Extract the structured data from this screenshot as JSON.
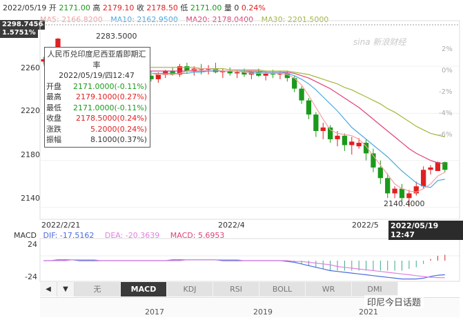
{
  "header": {
    "date": "2022/05/19",
    "open_label": "开",
    "open_value": "2171.00",
    "high_label": "高",
    "high_value": "2179.10",
    "close_label": "收",
    "close_value": "2178.50",
    "low_label": "低",
    "low_value": "2171.00",
    "vol_label": "量",
    "vol_value": "0",
    "change_pct": "0.24%"
  },
  "ma_legend": [
    {
      "label": "MA5: 2166.8200",
      "color": "#f5a0a0"
    },
    {
      "label": "MA10: 2162.9500",
      "color": "#4aa8e0"
    },
    {
      "label": "MA20: 2178.0400",
      "color": "#e0407a"
    },
    {
      "label": "MA30: 2201.5000",
      "color": "#a0b83a"
    }
  ],
  "top_price_label": "2298.7456",
  "top_pct_label": "1.5751%",
  "y_ticks": [
    "2260",
    "2220",
    "2180",
    "2140"
  ],
  "pct_ticks": [
    "2%",
    "0%",
    "-2%",
    "-4%",
    "-6%"
  ],
  "x_ticks": [
    "2022/2/21",
    "2022/4",
    "2022/5"
  ],
  "current_time": "2022/05/19 12:47",
  "high_annotation": "2283.5000",
  "low_annotation": "2140.4000",
  "watermark": "sina 新浪财经",
  "tooltip": {
    "title": "人民币兑印度尼西亚盾即期汇率",
    "datetime": "2022/05/19/四12:47",
    "rows": [
      {
        "k": "开盘",
        "v": "2171.0000(-0.11%)",
        "color": "#1a9a1a"
      },
      {
        "k": "最高",
        "v": "2179.1000(0.27%)",
        "color": "#e02020"
      },
      {
        "k": "最低",
        "v": "2171.0000(-0.11%)",
        "color": "#1a9a1a"
      },
      {
        "k": "收盘",
        "v": "2178.5000(0.24%)",
        "color": "#e02020"
      },
      {
        "k": "涨跌",
        "v": "5.2000(0.24%)",
        "color": "#e02020"
      },
      {
        "k": "振幅",
        "v": "8.1000(0.37%)",
        "color": "#333333"
      }
    ]
  },
  "macd_legend": {
    "name": "MACD",
    "dif": "DIF: -17.5162",
    "dea": "DEA: -20.3639",
    "macd": "MACD: 5.6953"
  },
  "macd_ticks": [
    "24",
    "-24"
  ],
  "nav_prev": "◀",
  "nav_next": "▼",
  "indicator_tabs": [
    "无",
    "MACD",
    "KDJ",
    "RSI",
    "BOLL",
    "WR",
    "DMI"
  ],
  "active_tab": "MACD",
  "nav_years": [
    "2017",
    "2019",
    "2021"
  ],
  "wechat_label": "印尼今日话题",
  "chart_data": {
    "type": "candlestick",
    "title": "人民币兑印度尼西亚盾即期汇率",
    "ylim": [
      2130,
      2298.7456
    ],
    "up_color": "#e02020",
    "down_color": "#1a9a1a",
    "candles": [
      [
        2264,
        2268,
        2262,
        2266
      ],
      [
        2266,
        2270,
        2263,
        2265
      ],
      [
        2265,
        2284,
        2264,
        2283.5
      ],
      [
        2268,
        2270,
        2255,
        2258
      ],
      [
        2258,
        2262,
        2252,
        2255
      ],
      [
        2255,
        2258,
        2250,
        2253
      ],
      [
        2253,
        2257,
        2249,
        2255
      ],
      [
        2255,
        2258,
        2248,
        2250
      ],
      [
        2250,
        2256,
        2247,
        2254
      ],
      [
        2254,
        2259,
        2250,
        2252
      ],
      [
        2252,
        2257,
        2248,
        2255
      ],
      [
        2255,
        2258,
        2251,
        2253
      ],
      [
        2253,
        2257,
        2249,
        2256
      ],
      [
        2256,
        2259,
        2252,
        2254
      ],
      [
        2254,
        2257,
        2249,
        2252
      ],
      [
        2252,
        2256,
        2247,
        2249
      ],
      [
        2249,
        2255,
        2246,
        2253
      ],
      [
        2253,
        2257,
        2250,
        2256
      ],
      [
        2256,
        2259,
        2252,
        2253
      ],
      [
        2253,
        2262,
        2251,
        2260
      ],
      [
        2260,
        2263,
        2254,
        2256
      ],
      [
        2256,
        2260,
        2252,
        2258
      ],
      [
        2258,
        2262,
        2253,
        2257
      ],
      [
        2257,
        2261,
        2253,
        2258
      ],
      [
        2258,
        2263,
        2254,
        2255
      ],
      [
        2255,
        2258,
        2250,
        2256
      ],
      [
        2256,
        2259,
        2252,
        2254
      ],
      [
        2254,
        2257,
        2250,
        2255
      ],
      [
        2255,
        2258,
        2251,
        2253
      ],
      [
        2253,
        2256,
        2249,
        2255
      ],
      [
        2255,
        2258,
        2251,
        2252
      ],
      [
        2252,
        2256,
        2248,
        2254
      ],
      [
        2254,
        2257,
        2250,
        2253
      ],
      [
        2253,
        2256,
        2249,
        2254
      ],
      [
        2254,
        2256,
        2247,
        2250
      ],
      [
        2250,
        2252,
        2238,
        2241
      ],
      [
        2241,
        2243,
        2228,
        2231
      ],
      [
        2231,
        2233,
        2215,
        2219
      ],
      [
        2219,
        2221,
        2200,
        2205
      ],
      [
        2205,
        2212,
        2198,
        2208
      ],
      [
        2208,
        2210,
        2195,
        2198
      ],
      [
        2198,
        2205,
        2192,
        2201
      ],
      [
        2201,
        2203,
        2188,
        2193
      ],
      [
        2193,
        2200,
        2185,
        2196
      ],
      [
        2192,
        2199,
        2190,
        2195
      ],
      [
        2195,
        2198,
        2180,
        2186
      ],
      [
        2186,
        2190,
        2170,
        2174
      ],
      [
        2174,
        2180,
        2160,
        2165
      ],
      [
        2165,
        2169,
        2148,
        2152
      ],
      [
        2152,
        2158,
        2148,
        2156
      ],
      [
        2156,
        2160,
        2143,
        2148
      ],
      [
        2148,
        2155,
        2140.4,
        2152
      ],
      [
        2152,
        2162,
        2150,
        2158
      ],
      [
        2158,
        2175,
        2156,
        2172
      ],
      [
        2172,
        2176,
        2168,
        2174
      ],
      [
        2171,
        2179.1,
        2171,
        2178.5
      ],
      [
        2178.5,
        2179,
        2170,
        2172
      ]
    ],
    "ma5": [
      2263,
      2262,
      2264,
      2264,
      2262,
      2261,
      2259,
      2256,
      2254,
      2253,
      2254,
      2254,
      2254,
      2254,
      2254,
      2254,
      2253,
      2253,
      2253,
      2254,
      2256,
      2257,
      2258,
      2258,
      2257,
      2256,
      2256,
      2256,
      2255,
      2254,
      2254,
      2254,
      2254,
      2254,
      2253,
      2250,
      2244,
      2235,
      2225,
      2215,
      2206,
      2203,
      2202,
      2201,
      2198,
      2192,
      2184,
      2176,
      2168,
      2160,
      2156,
      2154,
      2153,
      2156,
      2160,
      2166.82,
      2170
    ],
    "ma10": [
      2262,
      2262,
      2262,
      2262,
      2262,
      2262,
      2261,
      2260,
      2259,
      2258,
      2257,
      2256,
      2255,
      2254,
      2254,
      2254,
      2254,
      2254,
      2254,
      2254,
      2254,
      2255,
      2255,
      2256,
      2256,
      2256,
      2256,
      2256,
      2256,
      2255,
      2255,
      2255,
      2255,
      2255,
      2254,
      2252,
      2249,
      2245,
      2240,
      2234,
      2228,
      2222,
      2215,
      2208,
      2203,
      2198,
      2193,
      2188,
      2183,
      2177,
      2171,
      2166,
      2161,
      2158,
      2157,
      2162.95,
      2164
    ],
    "ma20": [
      2261,
      2261,
      2261,
      2261,
      2261,
      2260,
      2260,
      2260,
      2259,
      2259,
      2258,
      2258,
      2257,
      2257,
      2256,
      2256,
      2256,
      2256,
      2256,
      2256,
      2256,
      2256,
      2256,
      2256,
      2256,
      2256,
      2256,
      2256,
      2256,
      2256,
      2256,
      2255,
      2255,
      2255,
      2255,
      2254,
      2252,
      2250,
      2247,
      2244,
      2241,
      2237,
      2233,
      2229,
      2225,
      2220,
      2215,
      2210,
      2205,
      2200,
      2195,
      2190,
      2186,
      2183,
      2180,
      2178.04,
      2177
    ],
    "ma30": [
      2262,
      2262,
      2262,
      2262,
      2262,
      2262,
      2262,
      2262,
      2261,
      2261,
      2261,
      2260,
      2260,
      2260,
      2260,
      2259,
      2259,
      2259,
      2259,
      2259,
      2259,
      2259,
      2258,
      2258,
      2258,
      2258,
      2257,
      2257,
      2257,
      2257,
      2257,
      2256,
      2256,
      2256,
      2256,
      2255,
      2254,
      2253,
      2251,
      2249,
      2247,
      2245,
      2242,
      2240,
      2237,
      2234,
      2231,
      2228,
      2224,
      2221,
      2217,
      2213,
      2209,
      2206,
      2203,
      2201.5,
      2200
    ],
    "macd": {
      "ylim": [
        -24,
        24
      ],
      "dif": [
        0,
        0,
        1,
        1,
        1,
        0,
        0,
        0,
        0,
        0,
        0,
        0,
        0,
        0,
        0,
        0,
        0,
        0,
        1,
        1,
        1,
        1,
        1,
        1,
        1,
        0,
        0,
        0,
        0,
        0,
        0,
        0,
        0,
        0,
        -1,
        -2,
        -4,
        -6,
        -8,
        -10,
        -12,
        -13,
        -14,
        -15,
        -16,
        -17,
        -18,
        -19,
        -20,
        -21,
        -22,
        -22,
        -22,
        -21,
        -19,
        -17.5162,
        -17
      ],
      "dea": [
        0,
        0,
        0,
        0,
        1,
        1,
        1,
        1,
        0,
        0,
        0,
        0,
        0,
        0,
        0,
        0,
        0,
        0,
        0,
        0,
        1,
        1,
        1,
        1,
        1,
        1,
        1,
        1,
        0,
        0,
        0,
        0,
        0,
        0,
        0,
        -1,
        -1,
        -2,
        -3,
        -4,
        -5,
        -7,
        -8,
        -9,
        -10,
        -11,
        -12,
        -13,
        -14,
        -15,
        -16,
        -17,
        -18,
        -19,
        -20,
        -20.3639,
        -20.5
      ],
      "hist": [
        0,
        0,
        1,
        1,
        0,
        0,
        0,
        0,
        0,
        0,
        0,
        0,
        0,
        0,
        0,
        0,
        0,
        0,
        1,
        1,
        0,
        0,
        0,
        0,
        0,
        0,
        0,
        0,
        0,
        0,
        0,
        0,
        0,
        0,
        -1,
        -2,
        -4,
        -6,
        -8,
        -10,
        -12,
        -12,
        -12,
        -12,
        -12,
        -12,
        -12,
        -12,
        -12,
        -12,
        -12,
        -10,
        -8,
        -4,
        2,
        5.6953,
        7
      ]
    }
  },
  "colors": {
    "up": "#e02020",
    "down": "#1a9a1a",
    "ma5": "#f5a0a0",
    "ma10": "#4aa8e0",
    "ma20": "#e0407a",
    "ma30": "#a0b83a",
    "dif": "#4a6ae0",
    "dea": "#e080e0",
    "macd_hist": "#3aa88a"
  }
}
